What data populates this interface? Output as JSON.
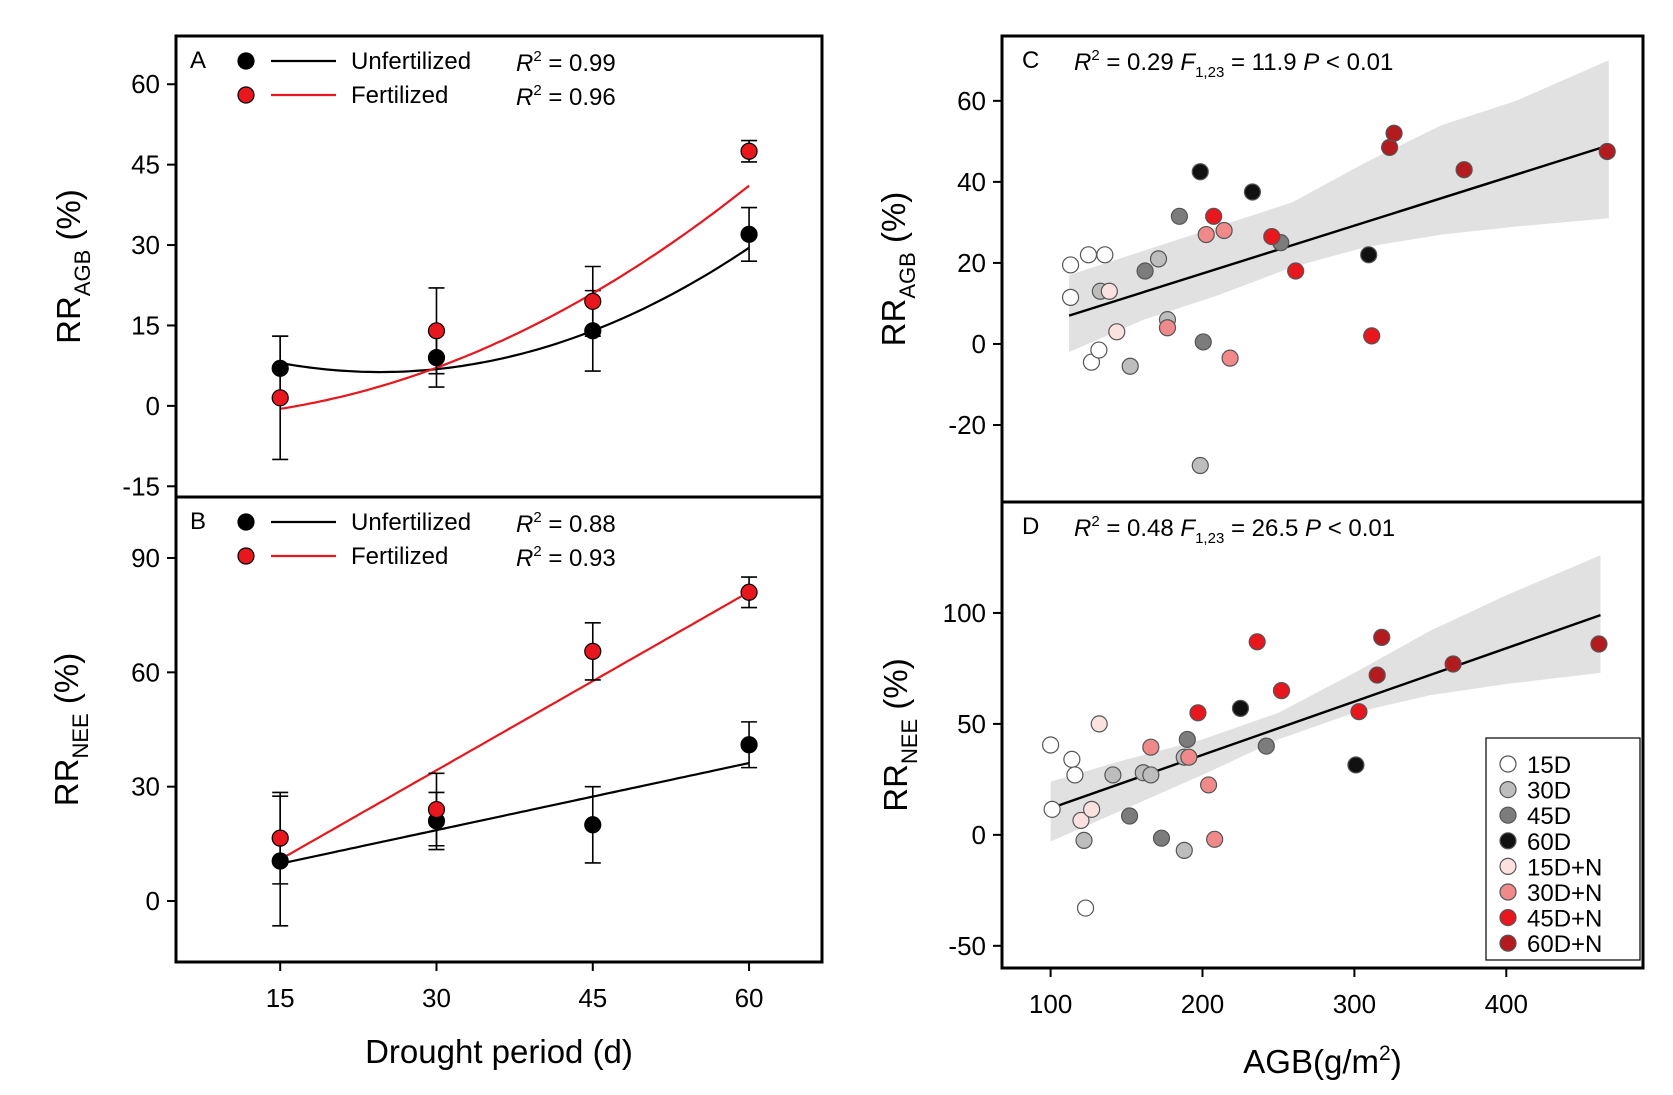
{
  "chart_data": [
    {
      "id": "A",
      "type": "scatter",
      "panel_label": "A",
      "xlabel": "",
      "ylabel": {
        "main": "RR",
        "sub": "AGB",
        "unit": " (%)"
      },
      "xlim": [
        5,
        67
      ],
      "ylim": [
        -17,
        69
      ],
      "xticks": [],
      "yticks": [
        60,
        45,
        30,
        15,
        0,
        -15
      ],
      "legend": [
        {
          "name": "Unfertilized",
          "color": "#000000",
          "r2_label": "R",
          "r2_value": " = 0.99"
        },
        {
          "name": "Fertilized",
          "color": "#e8161d",
          "r2_label": "R",
          "r2_value": " = 0.96"
        }
      ],
      "series": [
        {
          "name": "Unfertilized",
          "color": "#000000",
          "marker": "#000000",
          "points": [
            {
              "x": 15,
              "y": 7,
              "err": 6
            },
            {
              "x": 30,
              "y": 9,
              "err": 5.5
            },
            {
              "x": 45,
              "y": 14,
              "err": 7.5
            },
            {
              "x": 60,
              "y": 32,
              "err": 5
            }
          ],
          "fit": {
            "kind": "poly",
            "coef": [
              0.0185,
              -0.91,
              17.5
            ]
          }
        },
        {
          "name": "Fertilized",
          "color": "#e8161d",
          "marker": "#e8161d",
          "points": [
            {
              "x": 15,
              "y": 1.5,
              "err": 11.5
            },
            {
              "x": 30,
              "y": 14,
              "err": 8
            },
            {
              "x": 45,
              "y": 19.5,
              "err": 6.5
            },
            {
              "x": 60,
              "y": 47.5,
              "err": 2
            }
          ],
          "fit": {
            "kind": "poly",
            "coef": [
              0.0138,
              -0.11,
              -2.0
            ]
          }
        }
      ]
    },
    {
      "id": "B",
      "type": "scatter",
      "panel_label": "B",
      "xlabel": "Drought period (d)",
      "ylabel": {
        "main": "RR",
        "sub": "NEE",
        "unit": " (%)"
      },
      "xlim": [
        5,
        67
      ],
      "ylim": [
        -16,
        106
      ],
      "xticks": [
        15,
        30,
        45,
        60
      ],
      "yticks": [
        90,
        60,
        30,
        0
      ],
      "legend": [
        {
          "name": "Unfertilized",
          "color": "#000000",
          "r2_label": "R",
          "r2_value": " = 0.88"
        },
        {
          "name": "Fertilized",
          "color": "#e8161d",
          "r2_label": "R",
          "r2_value": " = 0.93"
        }
      ],
      "series": [
        {
          "name": "Unfertilized",
          "color": "#000000",
          "marker": "#000000",
          "points": [
            {
              "x": 15,
              "y": 10.5,
              "err": 17
            },
            {
              "x": 30,
              "y": 21,
              "err": 7.5
            },
            {
              "x": 45,
              "y": 20,
              "err": 10
            },
            {
              "x": 60,
              "y": 41,
              "err": 6
            }
          ],
          "fit": {
            "kind": "poly",
            "coef": [
              0,
              0.587,
              0.98
            ]
          }
        },
        {
          "name": "Fertilized",
          "color": "#e8161d",
          "marker": "#e8161d",
          "points": [
            {
              "x": 15,
              "y": 16.5,
              "err": 12
            },
            {
              "x": 30,
              "y": 24,
              "err": 9.5
            },
            {
              "x": 45,
              "y": 65.5,
              "err": 7.5
            },
            {
              "x": 60,
              "y": 81,
              "err": 4
            }
          ],
          "fit": {
            "kind": "poly",
            "coef": [
              0,
              1.56,
              -12.5
            ]
          }
        }
      ]
    },
    {
      "id": "C",
      "type": "scatter",
      "panel_label": "C",
      "xlabel": "",
      "ylabel": {
        "main": "RR",
        "sub": "AGB",
        "unit": " (%)"
      },
      "xlim": [
        55,
        485
      ],
      "ylim": [
        -39,
        76
      ],
      "xticks": [],
      "yticks": [
        60,
        40,
        20,
        0,
        -20
      ],
      "stats": {
        "r2_label": "R",
        "r2_value": " = 0.29",
        "f_label": "F",
        "f_sub": "1,23",
        "f_value": " = 11.9",
        "p_label": "P",
        "p_value": " < 0.01"
      },
      "fit": {
        "x": [
          100,
          462
        ],
        "y": [
          7,
          49
        ]
      },
      "ci_upper": [
        [
          100,
          17
        ],
        [
          150,
          23
        ],
        [
          200,
          29
        ],
        [
          250,
          35
        ],
        [
          300,
          45
        ],
        [
          350,
          54
        ],
        [
          400,
          60
        ],
        [
          462,
          70
        ]
      ],
      "ci_lower": [
        [
          462,
          31
        ],
        [
          400,
          29
        ],
        [
          350,
          27
        ],
        [
          300,
          24
        ],
        [
          250,
          19
        ],
        [
          200,
          12
        ],
        [
          150,
          6
        ],
        [
          100,
          -2
        ]
      ],
      "points": [
        {
          "x": 101,
          "y": 11.5,
          "g": "15D"
        },
        {
          "x": 101,
          "y": 19.5,
          "g": "15D"
        },
        {
          "x": 113,
          "y": 22,
          "g": "15D"
        },
        {
          "x": 124,
          "y": 22,
          "g": "15D"
        },
        {
          "x": 115,
          "y": -4.5,
          "g": "15D"
        },
        {
          "x": 120,
          "y": -1.5,
          "g": "15D"
        },
        {
          "x": 121,
          "y": 13,
          "g": "30D"
        },
        {
          "x": 141,
          "y": -5.5,
          "g": "30D"
        },
        {
          "x": 160,
          "y": 21,
          "g": "30D"
        },
        {
          "x": 166,
          "y": 6,
          "g": "30D"
        },
        {
          "x": 188,
          "y": -30,
          "g": "30D"
        },
        {
          "x": 151,
          "y": 18,
          "g": "45D"
        },
        {
          "x": 174,
          "y": 31.5,
          "g": "45D"
        },
        {
          "x": 190,
          "y": 0.5,
          "g": "45D"
        },
        {
          "x": 242,
          "y": 25,
          "g": "45D"
        },
        {
          "x": 188,
          "y": 42.5,
          "g": "60D"
        },
        {
          "x": 223,
          "y": 37.5,
          "g": "60D"
        },
        {
          "x": 301,
          "y": 22,
          "g": "60D"
        },
        {
          "x": 127,
          "y": 13,
          "g": "15D+N"
        },
        {
          "x": 132,
          "y": 3,
          "g": "15D+N"
        },
        {
          "x": 166,
          "y": 4,
          "g": "30D+N"
        },
        {
          "x": 192,
          "y": 27,
          "g": "30D+N"
        },
        {
          "x": 204,
          "y": 28,
          "g": "30D+N"
        },
        {
          "x": 208,
          "y": -3.5,
          "g": "30D+N"
        },
        {
          "x": 197,
          "y": 31.5,
          "g": "45D+N"
        },
        {
          "x": 236,
          "y": 26.5,
          "g": "45D+N"
        },
        {
          "x": 252,
          "y": 18,
          "g": "45D+N"
        },
        {
          "x": 303,
          "y": 2,
          "g": "45D+N"
        },
        {
          "x": 315,
          "y": 48.5,
          "g": "60D+N"
        },
        {
          "x": 318,
          "y": 52,
          "g": "60D+N"
        },
        {
          "x": 365,
          "y": 43,
          "g": "60D+N"
        },
        {
          "x": 461,
          "y": 47.5,
          "g": "60D+N"
        }
      ]
    },
    {
      "id": "D",
      "type": "scatter",
      "panel_label": "D",
      "xlabel": {
        "main": "AGB(g/m",
        "sup": "2",
        "end": ")"
      },
      "ylabel": {
        "main": "RR",
        "sub": "NEE",
        "unit": " (%)"
      },
      "xlim": [
        68,
        490
      ],
      "ylim": [
        -60,
        150
      ],
      "xticks": [
        100,
        200,
        300,
        400
      ],
      "yticks": [
        100,
        50,
        0,
        -50
      ],
      "stats": {
        "r2_label": "R",
        "r2_value": " = 0.48",
        "f_label": "F",
        "f_sub": "1,23",
        "f_value": " = 26.5",
        "p_label": "P",
        "p_value": " < 0.01"
      },
      "fit": {
        "x": [
          100,
          462
        ],
        "y": [
          12,
          99
        ]
      },
      "ci_upper": [
        [
          100,
          24
        ],
        [
          150,
          34
        ],
        [
          200,
          43
        ],
        [
          250,
          55
        ],
        [
          300,
          73
        ],
        [
          350,
          92
        ],
        [
          400,
          108
        ],
        [
          462,
          126
        ]
      ],
      "ci_lower": [
        [
          462,
          73
        ],
        [
          400,
          68
        ],
        [
          350,
          63
        ],
        [
          300,
          55
        ],
        [
          250,
          43
        ],
        [
          200,
          27
        ],
        [
          150,
          12
        ],
        [
          100,
          -3
        ]
      ],
      "points": [
        {
          "x": 100,
          "y": 40.5,
          "g": "15D"
        },
        {
          "x": 101,
          "y": 11.5,
          "g": "15D"
        },
        {
          "x": 114,
          "y": 34,
          "g": "15D"
        },
        {
          "x": 116,
          "y": 27,
          "g": "15D"
        },
        {
          "x": 123,
          "y": -33,
          "g": "15D"
        },
        {
          "x": 122,
          "y": -2.5,
          "g": "30D"
        },
        {
          "x": 141,
          "y": 27,
          "g": "30D"
        },
        {
          "x": 161,
          "y": 28,
          "g": "30D"
        },
        {
          "x": 166,
          "y": 27,
          "g": "30D"
        },
        {
          "x": 188,
          "y": -7,
          "g": "30D"
        },
        {
          "x": 188,
          "y": 35,
          "g": "30D"
        },
        {
          "x": 152,
          "y": 8.5,
          "g": "45D"
        },
        {
          "x": 173,
          "y": -1.5,
          "g": "45D"
        },
        {
          "x": 190,
          "y": 43,
          "g": "45D"
        },
        {
          "x": 242,
          "y": 40,
          "g": "45D"
        },
        {
          "x": 225,
          "y": 57,
          "g": "60D"
        },
        {
          "x": 301,
          "y": 31.5,
          "g": "60D"
        },
        {
          "x": 120,
          "y": 6.5,
          "g": "15D+N"
        },
        {
          "x": 127,
          "y": 11.5,
          "g": "15D+N"
        },
        {
          "x": 132,
          "y": 50,
          "g": "15D+N"
        },
        {
          "x": 166,
          "y": 39.5,
          "g": "30D+N"
        },
        {
          "x": 191,
          "y": 35,
          "g": "30D+N"
        },
        {
          "x": 204,
          "y": 22.5,
          "g": "30D+N"
        },
        {
          "x": 208,
          "y": -2,
          "g": "30D+N"
        },
        {
          "x": 197,
          "y": 55,
          "g": "45D+N"
        },
        {
          "x": 236,
          "y": 87,
          "g": "45D+N"
        },
        {
          "x": 252,
          "y": 65,
          "g": "45D+N"
        },
        {
          "x": 303,
          "y": 55.5,
          "g": "45D+N"
        },
        {
          "x": 315,
          "y": 72,
          "g": "60D+N"
        },
        {
          "x": 318,
          "y": 89,
          "g": "60D+N"
        },
        {
          "x": 365,
          "y": 77,
          "g": "60D+N"
        },
        {
          "x": 461,
          "y": 86,
          "g": "60D+N"
        }
      ],
      "legend": [
        {
          "name": "15D",
          "color": "#ffffff"
        },
        {
          "name": "30D",
          "color": "#bdbdbd"
        },
        {
          "name": "45D",
          "color": "#7c7c7c"
        },
        {
          "name": "60D",
          "color": "#111111"
        },
        {
          "name": "15D+N",
          "color": "#fbe2e0"
        },
        {
          "name": "30D+N",
          "color": "#f08a8a"
        },
        {
          "name": "45D+N",
          "color": "#e8161d"
        },
        {
          "name": "60D+N",
          "color": "#b31b1f"
        }
      ]
    }
  ]
}
